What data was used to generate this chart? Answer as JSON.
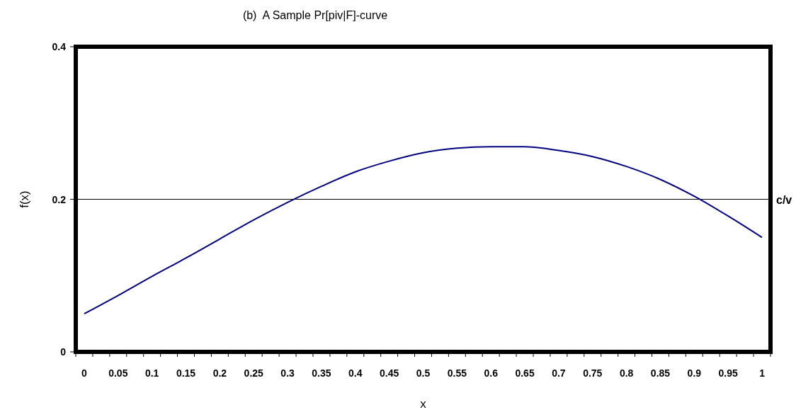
{
  "chart_data": {
    "type": "line",
    "title": "(b)  A Sample Pr[piv|F]-curve",
    "xlabel": "x",
    "ylabel": "f(x)",
    "x": [
      0,
      0.05,
      0.1,
      0.15,
      0.2,
      0.25,
      0.3,
      0.35,
      0.4,
      0.45,
      0.5,
      0.55,
      0.6,
      0.65,
      0.7,
      0.75,
      0.8,
      0.85,
      0.9,
      0.95,
      1
    ],
    "series": [
      {
        "color": "#000080",
        "values": [
          0.05,
          0.074,
          0.099,
          0.123,
          0.148,
          0.173,
          0.196,
          0.217,
          0.236,
          0.25,
          0.261,
          0.267,
          0.269,
          0.269,
          0.264,
          0.256,
          0.243,
          0.226,
          0.204,
          0.178,
          0.15
        ]
      }
    ],
    "xlim": [
      -0.0125,
      1.0125
    ],
    "xticks": [
      0,
      0.05,
      0.1,
      0.15,
      0.2,
      0.25,
      0.3,
      0.35,
      0.4,
      0.45,
      0.5,
      0.55,
      0.6,
      0.65,
      0.7,
      0.75,
      0.8,
      0.85,
      0.9,
      0.95,
      1,
      {
        "value": -0.0125,
        "label": null
      },
      {
        "value": 0.0125,
        "label": null
      },
      {
        "value": 0.0375,
        "label": null
      },
      {
        "value": 0.0625,
        "label": null
      },
      {
        "value": 0.0875,
        "label": null
      },
      {
        "value": 0.1125,
        "label": null
      },
      {
        "value": 0.1375,
        "label": null
      },
      {
        "value": 0.1625,
        "label": null
      },
      {
        "value": 0.1875,
        "label": null
      },
      {
        "value": 0.2125,
        "label": null
      },
      {
        "value": 0.2375,
        "label": null
      },
      {
        "value": 0.2625,
        "label": null
      },
      {
        "value": 0.2875,
        "label": null
      },
      {
        "value": 0.3125,
        "label": null
      },
      {
        "value": 0.3375,
        "label": null
      },
      {
        "value": 0.3625,
        "label": null
      },
      {
        "value": 0.3875,
        "label": null
      },
      {
        "value": 0.4125,
        "label": null
      },
      {
        "value": 0.4375,
        "label": null
      },
      {
        "value": 0.4625,
        "label": null
      },
      {
        "value": 0.4875,
        "label": null
      },
      {
        "value": 0.5125,
        "label": null
      },
      {
        "value": 0.5375,
        "label": null
      },
      {
        "value": 0.5625,
        "label": null
      },
      {
        "value": 0.5875,
        "label": null
      },
      {
        "value": 0.6125,
        "label": null
      },
      {
        "value": 0.6375,
        "label": null
      },
      {
        "value": 0.6625,
        "label": null
      },
      {
        "value": 0.6875,
        "label": null
      },
      {
        "value": 0.7125,
        "label": null
      },
      {
        "value": 0.7375,
        "label": null
      },
      {
        "value": 0.7625,
        "label": null
      },
      {
        "value": 0.7875,
        "label": null
      },
      {
        "value": 0.8125,
        "label": null
      },
      {
        "value": 0.8375,
        "label": null
      },
      {
        "value": 0.8625,
        "label": null
      },
      {
        "value": 0.8875,
        "label": null
      },
      {
        "value": 0.9125,
        "label": null
      },
      {
        "value": 0.9375,
        "label": null
      },
      {
        "value": 0.9625,
        "label": null
      },
      {
        "value": 0.9875,
        "label": null
      },
      {
        "value": 1.0125,
        "label": null
      }
    ],
    "ylim": [
      0,
      0.4
    ],
    "yticks": [
      0,
      0.2,
      0.4
    ],
    "ref_lines": [
      {
        "axis": "y",
        "value": 0.2,
        "label": "c/v",
        "color": "#000000"
      }
    ],
    "marker": "none",
    "line_style": "solid"
  }
}
